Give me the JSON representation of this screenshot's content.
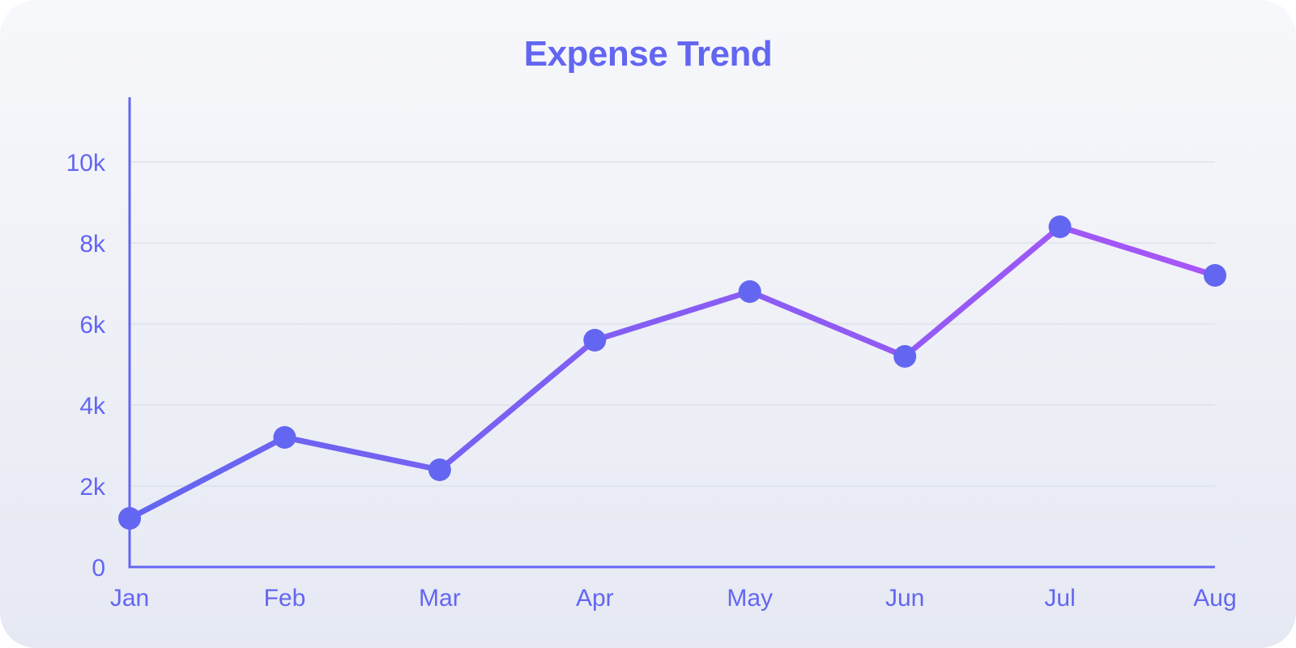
{
  "colors": {
    "accent": "#6366f1",
    "line_start": "#6366f1",
    "line_end": "#a855f7",
    "grid": "#dde1ea"
  },
  "chart_data": {
    "type": "line",
    "title": "Expense Trend",
    "xlabel": "",
    "ylabel": "",
    "categories": [
      "Jan",
      "Feb",
      "Mar",
      "Apr",
      "May",
      "Jun",
      "Jul",
      "Aug"
    ],
    "series": [
      {
        "values": [
          1200,
          3200,
          2400,
          5600,
          6800,
          5200,
          8400,
          7200
        ]
      }
    ],
    "ylim": [
      0,
      11600
    ],
    "yticks": [
      0,
      2000,
      4000,
      6000,
      8000,
      10000
    ],
    "ytick_labels": [
      "0",
      "2k",
      "4k",
      "6k",
      "8k",
      "10k"
    ],
    "grid": true,
    "legend": "none"
  }
}
